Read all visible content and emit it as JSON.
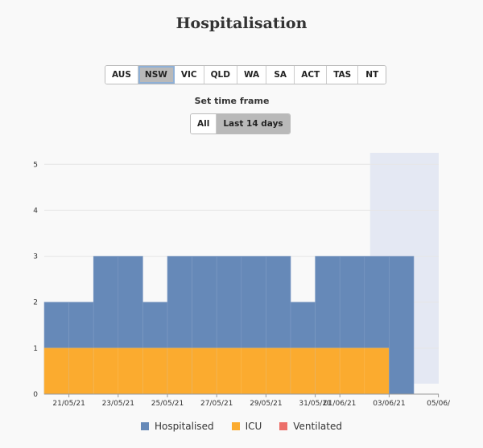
{
  "title": "Hospitalisation",
  "regions": [
    "AUS",
    "NSW",
    "VIC",
    "QLD",
    "WA",
    "SA",
    "ACT",
    "TAS",
    "NT"
  ],
  "active_region": "NSW",
  "time_frame": {
    "label": "Set time frame",
    "options": [
      "All",
      "Last 14 days"
    ],
    "active": "Last 14 days"
  },
  "colors": {
    "hospitalised": "#6689b8",
    "icu": "#fbab2f",
    "ventilated": "#ec6f6a",
    "highlight": "#e4e8f3"
  },
  "chart_data": {
    "type": "bar",
    "stacked": false,
    "categories": [
      "20/05/21",
      "21/05/21",
      "22/05/21",
      "23/05/21",
      "24/05/21",
      "25/05/21",
      "26/05/21",
      "27/05/21",
      "28/05/21",
      "29/05/21",
      "30/05/21",
      "31/05/21",
      "01/06/21",
      "02/06/21",
      "03/06/21",
      "04/06/21"
    ],
    "x_tick_labels": [
      "21/05/21",
      "23/05/21",
      "25/05/21",
      "27/05/21",
      "29/05/21",
      "31/05/21",
      "01/06/21",
      "03/06/21",
      "05/06/"
    ],
    "series": [
      {
        "name": "Hospitalised",
        "values": [
          2,
          2,
          3,
          3,
          2,
          3,
          3,
          3,
          3,
          3,
          2,
          3,
          3,
          3,
          3,
          null
        ]
      },
      {
        "name": "ICU",
        "values": [
          1,
          1,
          1,
          1,
          1,
          1,
          1,
          1,
          1,
          1,
          1,
          1,
          1,
          1,
          null,
          null
        ]
      },
      {
        "name": "Ventilated",
        "values": [
          0,
          0,
          0,
          0,
          0,
          0,
          0,
          0,
          0,
          0,
          0,
          0,
          0,
          0,
          null,
          null
        ]
      }
    ],
    "y_ticks": [
      0,
      1,
      2,
      3,
      4,
      5
    ],
    "ylim": [
      0,
      5.25
    ],
    "grid": true,
    "legend_position": "bottom"
  }
}
